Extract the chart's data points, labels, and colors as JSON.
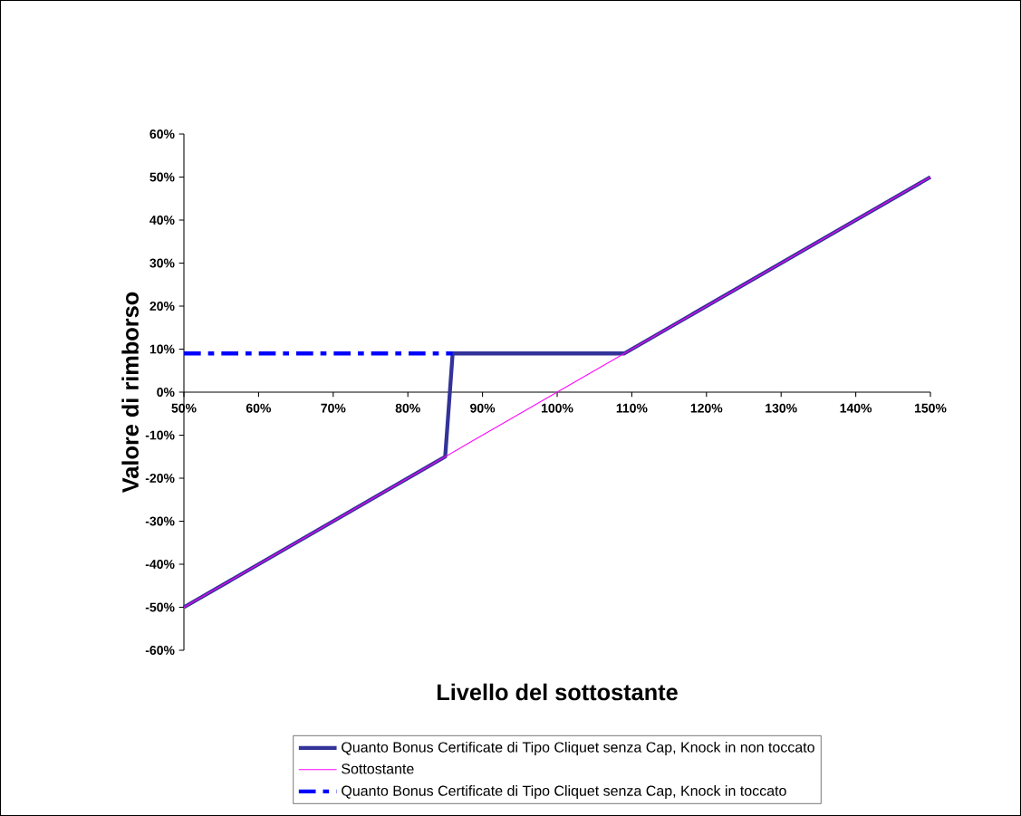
{
  "chart_data": {
    "type": "line",
    "xlabel": "Livello del sottostante",
    "ylabel": "Valore di rimborso",
    "legend": "bottom",
    "xlim": [
      50,
      150
    ],
    "ylim": [
      -60,
      60
    ],
    "xticks": [
      {
        "value": 50,
        "label": "50%"
      },
      {
        "value": 60,
        "label": "60%"
      },
      {
        "value": 70,
        "label": "70%"
      },
      {
        "value": 80,
        "label": "80%"
      },
      {
        "value": 90,
        "label": "90%"
      },
      {
        "value": 100,
        "label": "100%"
      },
      {
        "value": 110,
        "label": "110%"
      },
      {
        "value": 120,
        "label": "120%"
      },
      {
        "value": 130,
        "label": "130%"
      },
      {
        "value": 140,
        "label": "140%"
      },
      {
        "value": 150,
        "label": "150%"
      }
    ],
    "yticks": [
      {
        "value": -60,
        "label": "-60%"
      },
      {
        "value": -50,
        "label": "-50%"
      },
      {
        "value": -40,
        "label": "-40%"
      },
      {
        "value": -30,
        "label": "-30%"
      },
      {
        "value": -20,
        "label": "-20%"
      },
      {
        "value": -10,
        "label": "-10%"
      },
      {
        "value": 0,
        "label": "0%"
      },
      {
        "value": 10,
        "label": "10%"
      },
      {
        "value": 20,
        "label": "20%"
      },
      {
        "value": 30,
        "label": "30%"
      },
      {
        "value": 40,
        "label": "40%"
      },
      {
        "value": 50,
        "label": "50%"
      },
      {
        "value": 60,
        "label": "60%"
      }
    ],
    "series": [
      {
        "name": "Quanto Bonus Certificate di Tipo Cliquet senza Cap, Knock in non toccato",
        "color": "#333399",
        "line_style": "solid",
        "x": [
          50,
          85,
          86,
          109,
          150
        ],
        "values": [
          -50,
          -15,
          9,
          9,
          50
        ]
      },
      {
        "name": "Sottostante",
        "color": "#ff00ff",
        "line_style": "solid",
        "x": [
          50,
          150
        ],
        "values": [
          -50,
          50
        ]
      },
      {
        "name": "Quanto Bonus Certificate di Tipo Cliquet senza Cap, Knock in toccato",
        "color": "#0000ff",
        "line_style": "dashed",
        "x": [
          50,
          86
        ],
        "values": [
          9,
          9
        ]
      }
    ]
  }
}
